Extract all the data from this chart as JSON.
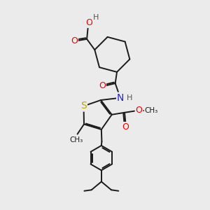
{
  "bg_color": "#ebebeb",
  "bond_color": "#1a1a1a",
  "bond_width": 1.4,
  "dbo": 0.06,
  "atom_colors": {
    "O": "#ee0000",
    "N": "#2222cc",
    "S": "#bbaa00",
    "C": "#1a1a1a",
    "H": "#555555"
  },
  "fs": 8.5
}
